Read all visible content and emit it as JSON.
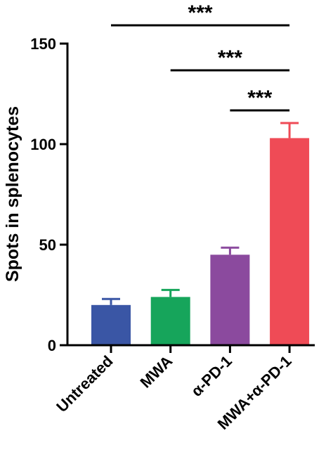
{
  "chart_data": {
    "type": "bar",
    "ylabel": "Spots in splenocytes",
    "ylim": [
      0,
      150
    ],
    "yticks": [
      0,
      50,
      100,
      150
    ],
    "categories": [
      "Untreated",
      "MWA",
      "α-PD-1",
      "MWA+α-PD-1"
    ],
    "values": [
      20,
      24,
      45,
      103
    ],
    "errors": [
      3,
      3.5,
      3.5,
      7.5
    ],
    "colors": [
      "#3a56a5",
      "#16a55b",
      "#8b4a9e",
      "#ef4b56"
    ],
    "significance": [
      {
        "from": 0,
        "to": 3,
        "label": "***"
      },
      {
        "from": 1,
        "to": 3,
        "label": "***"
      },
      {
        "from": 2,
        "to": 3,
        "label": "***"
      }
    ]
  }
}
